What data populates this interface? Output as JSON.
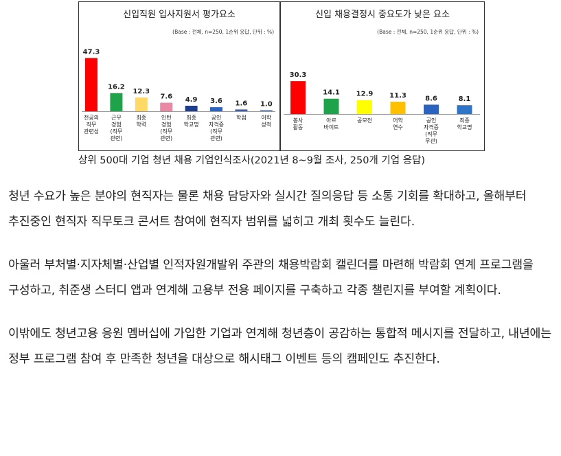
{
  "chart_data": [
    {
      "type": "bar",
      "title": "신입직원 입사지원서 평가요소",
      "subtitle": "(Base : 전체, n=250, 1순위 응답, 단위 : %)",
      "categories": [
        [
          "전공의",
          "직무",
          "관련성"
        ],
        [
          "근무",
          "경험",
          "(직무",
          "관련)"
        ],
        [
          "최종",
          "학력"
        ],
        [
          "인턴",
          "경험",
          "(직무",
          "관련)"
        ],
        [
          "최종",
          "학교명"
        ],
        [
          "공인",
          "자격증",
          "(직무",
          "관련)"
        ],
        [
          "학점"
        ],
        [
          "어학",
          "성적"
        ]
      ],
      "values": [
        47.3,
        16.2,
        12.3,
        7.6,
        4.9,
        3.6,
        1.6,
        1.0
      ],
      "value_labels": [
        "47.3",
        "16.2",
        "12.3",
        "7.6",
        "4.9",
        "3.6",
        "1.6",
        "1.0"
      ],
      "colors": [
        "#ff0000",
        "#1fa34a",
        "#ffd966",
        "#e989a5",
        "#1f3d8c",
        "#2a63c0",
        "#3a62b0",
        "#5a7fc0"
      ],
      "ylim": [
        0,
        50
      ]
    },
    {
      "type": "bar",
      "title": "신입 채용결정시 중요도가 낮은 요소",
      "subtitle": "(Base : 전체, n=250, 1순위 응답, 단위 : %)",
      "categories": [
        [
          "봉사",
          "활동"
        ],
        [
          "아르",
          "바이트"
        ],
        [
          "공모전"
        ],
        [
          "어학",
          "연수"
        ],
        [
          "공인",
          "자격증",
          "(직무",
          "무관)"
        ],
        [
          "최종",
          "학교명"
        ]
      ],
      "values": [
        30.3,
        14.1,
        12.9,
        11.3,
        8.6,
        8.1
      ],
      "value_labels": [
        "30.3",
        "14.1",
        "12.9",
        "11.3",
        "8.6",
        "8.1"
      ],
      "colors": [
        "#ff0000",
        "#1fa34a",
        "#ffff00",
        "#ffc000",
        "#2a63c0",
        "#2e75c8"
      ],
      "ylim": [
        0,
        50
      ]
    }
  ],
  "caption": "상위 500대 기업 청년 채용 기업인식조사(2021년 8~9월 조사, 250개 기업 응답)",
  "paragraphs": [
    "청년 수요가 높은 분야의 현직자는 물론 채용 담당자와 실시간 질의응답 등 소통 기회를 확대하고, 올해부터 추진중인 현직자 직무토크 콘서트 참여에 현직자 범위를 넓히고 개최 횟수도 늘린다.",
    "아울러 부처별·지자체별·산업별 인적자원개발위 주관의 채용박람회 캘린더를 마련해 박람회 연계 프로그램을 구성하고, 취준생 스터디 앱과 연계해 고용부 전용 페이지를 구축하고 각종 챌린지를 부여할 계획이다.",
    "이밖에도 청년고용 응원 멤버십에 가입한 기업과 연계해 청년층이 공감하는 통합적 메시지를 전달하고, 내년에는 정부 프로그램 참여 후 만족한 청년을 대상으로 해시태그 이벤트 등의 캠페인도 추진한다."
  ]
}
